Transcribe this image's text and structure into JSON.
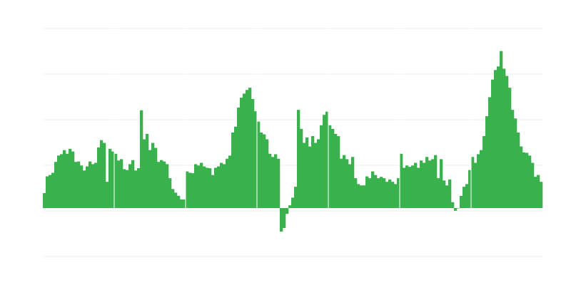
{
  "chart_data": {
    "type": "bar",
    "title": "",
    "xlabel": "",
    "ylabel": "",
    "ylim": [
      -1.08,
      4
    ],
    "grid": true,
    "gridlines": [
      -1,
      0,
      1,
      2,
      3,
      4
    ],
    "bar_color": "#39b14c",
    "grid_color": "#eeeeee",
    "values": [
      0.33,
      0.7,
      0.73,
      0.78,
      1.02,
      1.16,
      1.19,
      1.28,
      1.2,
      1.31,
      1.25,
      1.02,
      1.03,
      0.94,
      0.83,
      0.92,
      1.03,
      0.97,
      1.0,
      1.34,
      1.5,
      1.44,
      0.58,
      1.31,
      1.25,
      1.2,
      1.05,
      1.08,
      0.86,
      0.84,
      0.97,
      1.06,
      0.83,
      0.88,
      2.16,
      1.52,
      1.64,
      1.28,
      1.44,
      1.33,
      1.02,
      1.06,
      1.03,
      0.97,
      0.66,
      0.42,
      0.34,
      0.27,
      0.19,
      0.19,
      0.81,
      0.78,
      0.77,
      0.97,
      0.94,
      1.0,
      0.92,
      0.89,
      0.88,
      0.73,
      0.89,
      0.92,
      1.0,
      0.97,
      1.09,
      1.16,
      1.67,
      1.8,
      2.22,
      2.44,
      2.53,
      2.61,
      2.66,
      2.41,
      2.14,
      1.91,
      1.67,
      1.63,
      1.52,
      1.2,
      1.13,
      1.19,
      1.09,
      -0.52,
      -0.44,
      -0.13,
      0.06,
      0.23,
      0.47,
      2.17,
      1.75,
      1.44,
      1.56,
      1.36,
      1.59,
      1.44,
      1.52,
      1.83,
      2.06,
      2.13,
      1.83,
      1.75,
      1.64,
      1.59,
      1.09,
      1.17,
      1.08,
      0.97,
      1.13,
      0.66,
      0.53,
      0.5,
      0.5,
      0.7,
      0.66,
      0.81,
      0.73,
      0.66,
      0.69,
      0.66,
      0.58,
      0.63,
      0.58,
      0.53,
      0.66,
      1.2,
      0.89,
      0.94,
      0.91,
      0.94,
      1.0,
      0.89,
      1.05,
      1.0,
      1.13,
      1.05,
      1.08,
      1.17,
      0.66,
      1.08,
      0.61,
      0.5,
      0.63,
      0.13,
      -0.06,
      0,
      0.27,
      0.47,
      0.53,
      0.84,
      1.13,
      1.0,
      1.19,
      1.28,
      1.59,
      2.03,
      2.45,
      2.84,
      3.05,
      3.13,
      3.47,
      3.08,
      2.92,
      2.66,
      2.17,
      1.98,
      1.67,
      1.36,
      1.23,
      1.22,
      1.16,
      1.0,
      0.69,
      0.73,
      0.58
    ]
  }
}
